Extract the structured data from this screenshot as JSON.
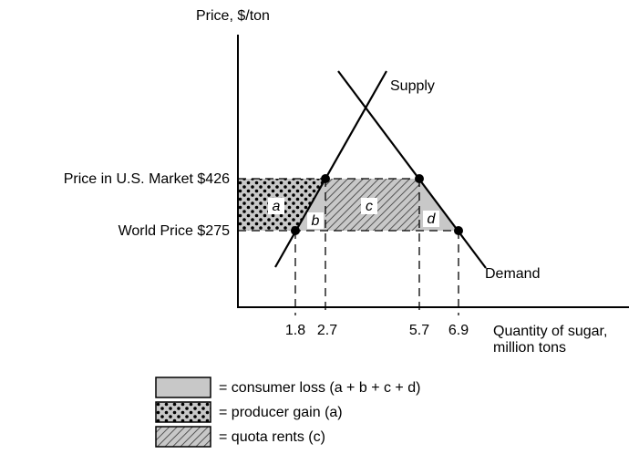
{
  "y_axis_label": "Price, $/ton",
  "x_axis_label": [
    "Quantity of sugar,",
    "million tons"
  ],
  "price_labels": [
    "Price in U.S. Market $426",
    "World Price $275"
  ],
  "quantity_labels": [
    "1.8",
    "2.7",
    "5.7",
    "6.9"
  ],
  "curves": {
    "supply": "Supply",
    "demand": "Demand"
  },
  "areas": [
    "a",
    "b",
    "c",
    "d"
  ],
  "legend": [
    "= consumer loss (a + b + c + d)",
    "= producer gain (a)",
    "= quota rents (c)"
  ]
}
